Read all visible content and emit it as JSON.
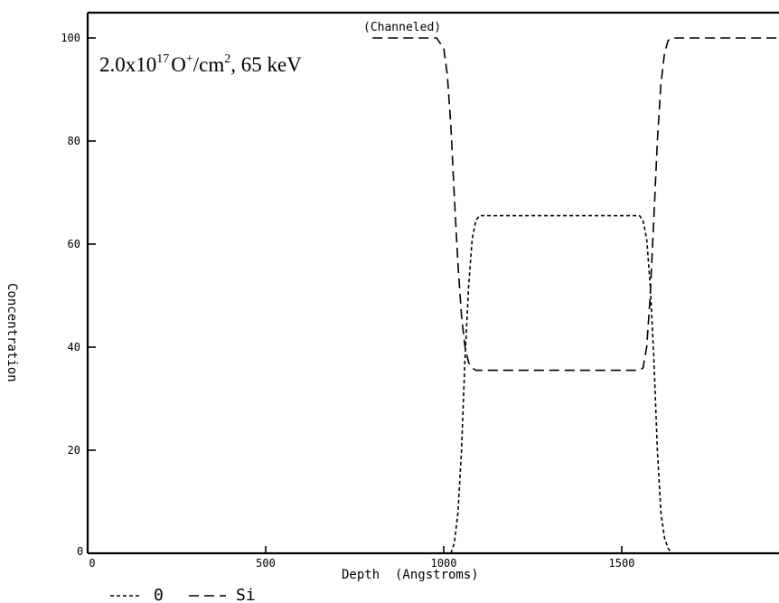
{
  "chart_data": {
    "type": "line",
    "annotation": "2.0x10",
    "annotation_exp": "17",
    "annotation_ion": "O",
    "annotation_charge": "+",
    "annotation_unit": "/cm",
    "annotation_unit_exp": "2",
    "annotation_energy": ",  65 keV",
    "note": "(Channeled)",
    "xlabel": "Depth  (Angstroms)",
    "ylabel": "Concentration",
    "xlim": [
      0,
      2000
    ],
    "ylim": [
      0,
      105
    ],
    "xticks": [
      0,
      500,
      1000,
      1500
    ],
    "xtick_labels": [
      "0",
      "500",
      "1000",
      "1500"
    ],
    "yticks": [
      0,
      20,
      40,
      60,
      80,
      100
    ],
    "ytick_labels": [
      "0",
      "20",
      "40",
      "60",
      "80",
      "100"
    ],
    "series": [
      {
        "name": "0",
        "dash": "4,3",
        "x": [
          1020,
          1030,
          1040,
          1050,
          1060,
          1070,
          1080,
          1090,
          1100,
          1200,
          1300,
          1400,
          1500,
          1550,
          1560,
          1570,
          1580,
          1590,
          1600,
          1610,
          1620,
          1630,
          1640
        ],
        "y": [
          0,
          2,
          8,
          20,
          38,
          52,
          61,
          64.5,
          65.5,
          65.5,
          65.5,
          65.5,
          65.5,
          65.5,
          64.5,
          61,
          52,
          38,
          20,
          8,
          3,
          1,
          0
        ]
      },
      {
        "name": "Si",
        "dash": "11,6",
        "x": [
          800,
          980,
          1000,
          1010,
          1020,
          1030,
          1040,
          1050,
          1060,
          1070,
          1080,
          1090,
          1100,
          1200,
          1300,
          1400,
          1500,
          1550,
          1560,
          1570,
          1580,
          1590,
          1600,
          1610,
          1620,
          1630,
          1640,
          1700,
          2000
        ],
        "y": [
          100,
          100,
          98,
          93,
          83,
          69,
          56,
          46,
          40,
          37,
          36,
          35.5,
          35.5,
          35.5,
          35.5,
          35.5,
          35.5,
          35.5,
          36,
          40,
          50,
          65,
          80,
          91,
          97,
          99.5,
          100,
          100,
          100
        ]
      }
    ],
    "legend": {
      "placement": "bottom-left",
      "entries": [
        "0",
        "Si"
      ]
    }
  }
}
